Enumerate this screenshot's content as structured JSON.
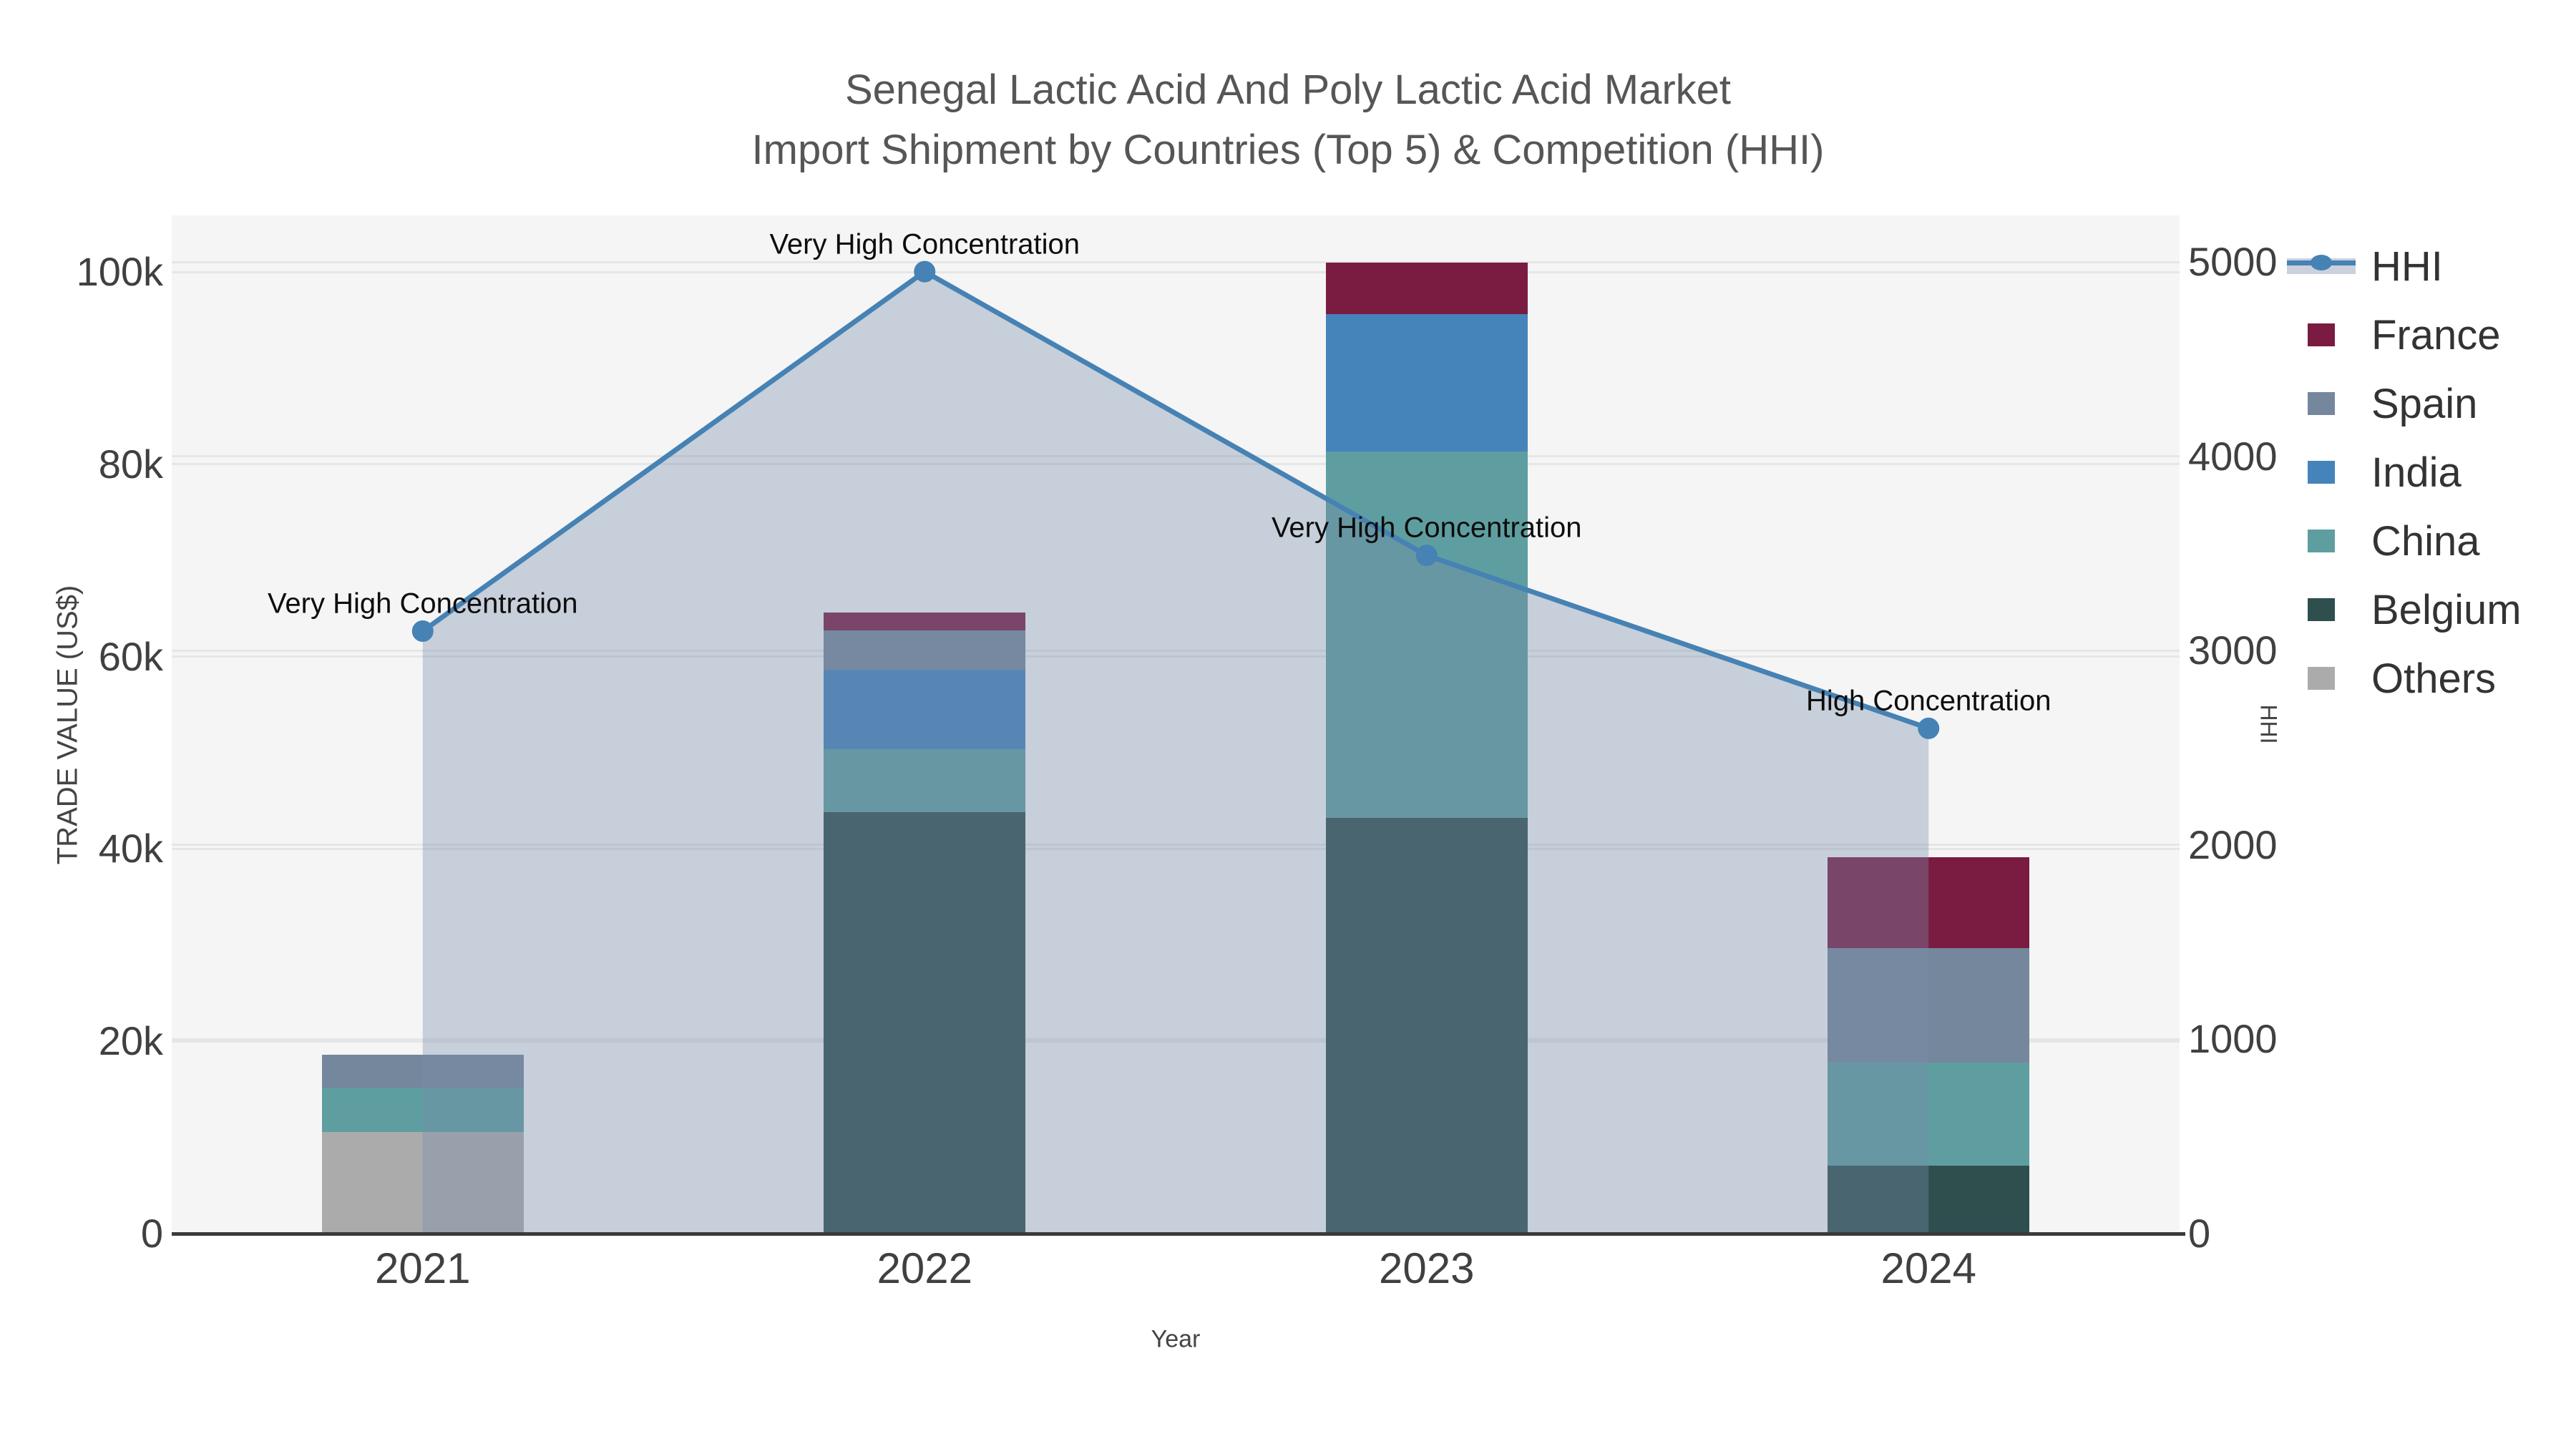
{
  "title": {
    "line1": "Senegal Lactic Acid And Poly Lactic Acid Market",
    "line2": "Import Shipment by Countries (Top 5) & Competition (HHI)"
  },
  "axes": {
    "x": {
      "label": "Year",
      "ticks": [
        "2021",
        "2022",
        "2023",
        "2024"
      ]
    },
    "y_left": {
      "label": "TRADE VALUE (US$)",
      "ticks": [
        {
          "v": 0,
          "label": "0"
        },
        {
          "v": 20000,
          "label": "20k"
        },
        {
          "v": 40000,
          "label": "40k"
        },
        {
          "v": 60000,
          "label": "60k"
        },
        {
          "v": 80000,
          "label": "80k"
        },
        {
          "v": 100000,
          "label": "100k"
        }
      ]
    },
    "y_right": {
      "label": "HHI",
      "ticks": [
        {
          "v": 0,
          "label": "0"
        },
        {
          "v": 1000,
          "label": "1000"
        },
        {
          "v": 2000,
          "label": "2000"
        },
        {
          "v": 3000,
          "label": "3000"
        },
        {
          "v": 4000,
          "label": "4000"
        },
        {
          "v": 5000,
          "label": "5000"
        }
      ]
    }
  },
  "legend": {
    "items": [
      {
        "label": "HHI",
        "type": "line",
        "color": "#4682b4"
      },
      {
        "label": "France",
        "type": "swatch",
        "color": "#7a1b41"
      },
      {
        "label": "Spain",
        "type": "swatch",
        "color": "#75879c"
      },
      {
        "label": "India",
        "type": "swatch",
        "color": "#4583bb"
      },
      {
        "label": "China",
        "type": "swatch",
        "color": "#5f9ea0"
      },
      {
        "label": "Belgium",
        "type": "swatch",
        "color": "#2f4f4f"
      },
      {
        "label": "Others",
        "type": "swatch",
        "color": "#ababab"
      }
    ]
  },
  "colors": {
    "figure_bg": "#ffffff",
    "plot_bg": "#f5f5f5",
    "gridline": "#e6e6e6",
    "axis_spine": "#3a3a3a",
    "tick_text": "#404040",
    "title_text": "#565656",
    "annotation_text": "#0d0d0d",
    "hhi_line": "#4682b4",
    "hhi_area_fill": "rgba(120,140,170,0.37)"
  },
  "chart_data": {
    "type": "combo: stacked bar (left axis) + line with area fill (right axis)",
    "title": "Senegal Lactic Acid And Poly Lactic Acid Market — Import Shipment by Countries (Top 5) & Competition (HHI)",
    "xlabel": "Year",
    "ylabel_left": "TRADE VALUE (US$)",
    "ylabel_right": "HHI",
    "ylim_left": [
      0,
      105900
    ],
    "ylim_right": [
      0,
      5240
    ],
    "grid": true,
    "legend_position": "upper right, outside plot",
    "categories": [
      "2021",
      "2022",
      "2023",
      "2024"
    ],
    "stack_order_bottom_to_top": [
      "Others",
      "Belgium",
      "China",
      "India",
      "Spain",
      "France"
    ],
    "series": [
      {
        "name": "France",
        "color": "#7a1b41",
        "values": [
          0,
          1900,
          5400,
          9400
        ]
      },
      {
        "name": "Spain",
        "color": "#75879c",
        "values": [
          3400,
          4100,
          0,
          11900
        ]
      },
      {
        "name": "India",
        "color": "#4583bb",
        "values": [
          0,
          8200,
          14300,
          0
        ]
      },
      {
        "name": "China",
        "color": "#5f9ea0",
        "values": [
          4600,
          6600,
          38100,
          10700
        ]
      },
      {
        "name": "Belgium",
        "color": "#2f4f4f",
        "values": [
          0,
          43800,
          43200,
          7100
        ]
      },
      {
        "name": "Others",
        "color": "#ababab",
        "values": [
          10600,
          0,
          0,
          0
        ]
      }
    ],
    "bar_totals": [
      18600,
      64600,
      101000,
      39100
    ],
    "hhi_series": {
      "name": "HHI",
      "color": "#4682b4",
      "area_fill": "rgba(120,140,170,0.37)",
      "values": [
        3100,
        4950,
        3490,
        2600
      ]
    },
    "annotations": [
      "Very High Concentration",
      "Very High Concentration",
      "Very High Concentration",
      "High Concentration"
    ]
  }
}
